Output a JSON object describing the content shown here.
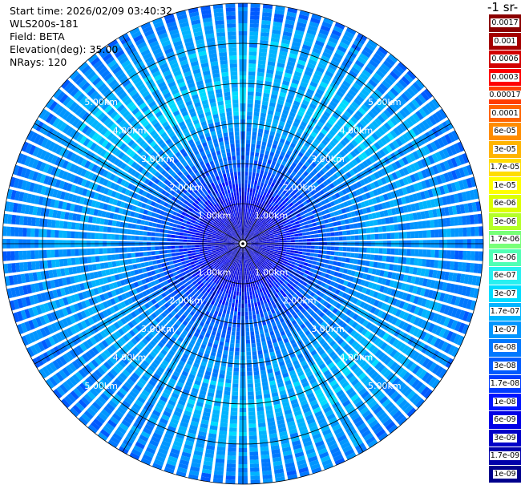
{
  "info": {
    "start_time": "Start time: 2026/02/09 03:40:32",
    "instrument": "WLS200s-181",
    "field": "Field: BETA",
    "elevation": "Elevation(deg): 35.00",
    "nrays": "NRays: 120"
  },
  "colorbar": {
    "title": "-1 sr-",
    "labels": [
      "0.0017",
      "0.001",
      "0.0006",
      "0.0003",
      "0.00017",
      "0.0001",
      "6e-05",
      "3e-05",
      "1.7e-05",
      "1e-05",
      "6e-06",
      "3e-06",
      "1.7e-06",
      "1e-06",
      "6e-07",
      "3e-07",
      "1.7e-07",
      "1e-07",
      "6e-08",
      "3e-08",
      "1.7e-08",
      "1e-08",
      "6e-09",
      "3e-09",
      "1.7e-09",
      "1e-09"
    ],
    "colors": [
      "#8b0000",
      "#a50000",
      "#d20000",
      "#ff0000",
      "#ff3c00",
      "#ff6400",
      "#ff8c00",
      "#ffb400",
      "#ffdc00",
      "#ffff00",
      "#dcff00",
      "#b4ff28",
      "#78ff78",
      "#50ffb4",
      "#28f0f0",
      "#00dcff",
      "#00b4ff",
      "#0096ff",
      "#0078ff",
      "#005aff",
      "#003cff",
      "#0014ff",
      "#0000e6",
      "#0000c8",
      "#0000aa",
      "#00008c"
    ]
  },
  "chart_data": {
    "type": "heatmap",
    "projection": "polar (PPI scan)",
    "field": "BETA",
    "nrays": 120,
    "elevation_deg": 35.0,
    "range_rings_km": [
      1,
      2,
      3,
      4,
      5
    ],
    "ring_labels": {
      "r1": "1.00km",
      "r2": "2.00km",
      "r3": "3.00km",
      "r4": "4.00km",
      "r5": "5.00km"
    },
    "max_range_km": 6.0,
    "azimuth_lines_deg": [
      0,
      30,
      60,
      90,
      120,
      150,
      180,
      210,
      240,
      270,
      300,
      330
    ],
    "range_profile_km": [
      0.0,
      0.5,
      1.0,
      1.5,
      2.0,
      2.5,
      3.0,
      3.5,
      4.0,
      4.5,
      5.0,
      5.5,
      6.0
    ],
    "range_profile_log10_beta": [
      -8.6,
      -8.4,
      -8.1,
      -7.7,
      -7.4,
      -7.2,
      -7.0,
      -6.9,
      -6.9,
      -6.9,
      -7.0,
      -7.1,
      -7.2
    ],
    "colorscale_range": [
      "1e-09",
      "0.0017"
    ]
  }
}
